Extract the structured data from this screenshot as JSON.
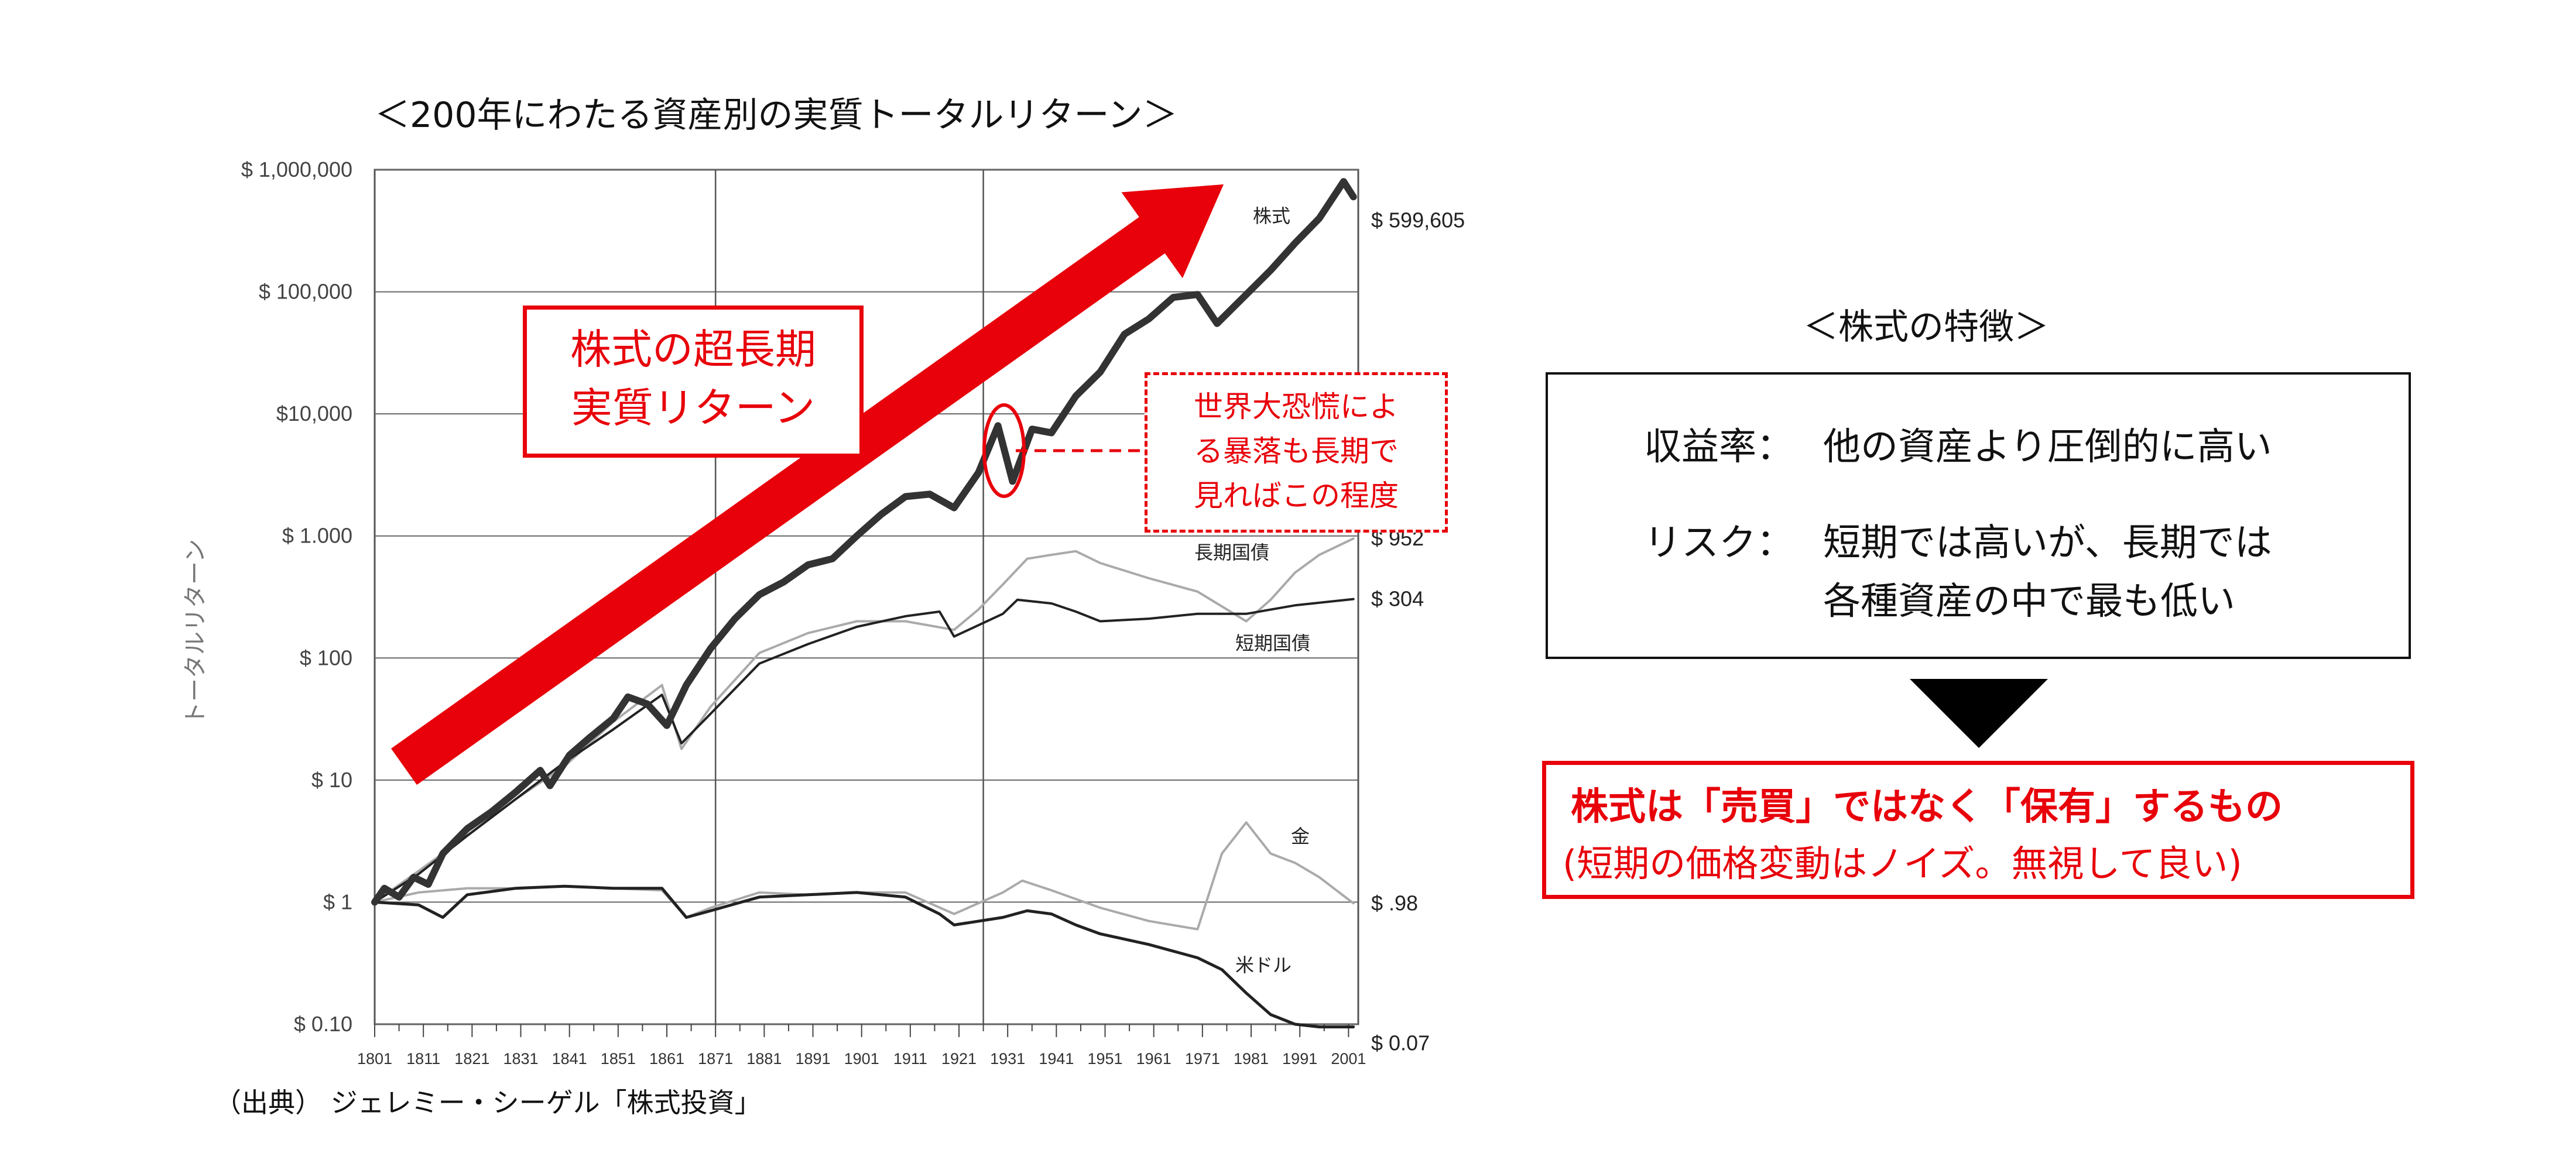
{
  "title": "＜200年にわたる資産別の実質トータルリターン＞",
  "source": "（出典） ジェレミー・シーゲル「株式投資」",
  "callout_long_term": [
    "株式の超長期",
    "実質リターン"
  ],
  "callout_crash": [
    "世界大恐慌によ",
    "る暴落も長期で",
    "見ればこの程度"
  ],
  "feature_panel": {
    "title": "＜株式の特徴＞",
    "rows": [
      {
        "key": "収益率：",
        "lines": [
          "他の資産より圧倒的に高い"
        ]
      },
      {
        "key": "リスク：",
        "lines": [
          "短期では高いが、長期では",
          "各種資産の中で最も低い"
        ]
      }
    ]
  },
  "conclusion": {
    "main": "株式は「売買」ではなく「保有」するもの",
    "sub": "(短期の価格変動はノイズ。無視して良い)"
  },
  "colors": {
    "accent_red": "#e8000a",
    "stock": "#333333",
    "bonds": "#aaaaaa",
    "bills": "#222222",
    "gold": "#aaaaaa",
    "dollar": "#222222"
  },
  "chart_data": {
    "type": "line",
    "ylabel": "トータルリターン",
    "y_scale": "log",
    "ylim": [
      0.1,
      1000000
    ],
    "xlim": [
      1801,
      2003
    ],
    "y_ticks": [
      {
        "value": 1000000,
        "label": "$ 1,000,000"
      },
      {
        "value": 100000,
        "label": "$ 100,000"
      },
      {
        "value": 10000,
        "label": "$10,000"
      },
      {
        "value": 1000,
        "label": "$ 1.000"
      },
      {
        "value": 100,
        "label": "$ 100"
      },
      {
        "value": 10,
        "label": "$ 10"
      },
      {
        "value": 1,
        "label": "$ 1"
      },
      {
        "value": 0.1,
        "label": "$ 0.10"
      }
    ],
    "x_ticks": [
      1801,
      1811,
      1821,
      1831,
      1841,
      1851,
      1861,
      1871,
      1881,
      1891,
      1901,
      1911,
      1921,
      1931,
      1941,
      1951,
      1961,
      1971,
      1981,
      1991,
      2001
    ],
    "vertical_grid": [
      1871,
      1926
    ],
    "series": [
      {
        "name": "株式",
        "end_label": "$ 599,605",
        "end_value": 599605,
        "points": [
          [
            1801,
            1
          ],
          [
            1803,
            1.3
          ],
          [
            1806,
            1.1
          ],
          [
            1809,
            1.6
          ],
          [
            1812,
            1.4
          ],
          [
            1815,
            2.5
          ],
          [
            1820,
            4
          ],
          [
            1825,
            5.5
          ],
          [
            1830,
            8
          ],
          [
            1835,
            12
          ],
          [
            1837,
            9
          ],
          [
            1841,
            16
          ],
          [
            1845,
            22
          ],
          [
            1850,
            32
          ],
          [
            1853,
            48
          ],
          [
            1857,
            42
          ],
          [
            1861,
            28
          ],
          [
            1865,
            60
          ],
          [
            1870,
            120
          ],
          [
            1875,
            210
          ],
          [
            1880,
            330
          ],
          [
            1885,
            420
          ],
          [
            1890,
            580
          ],
          [
            1895,
            650
          ],
          [
            1900,
            1000
          ],
          [
            1905,
            1500
          ],
          [
            1910,
            2100
          ],
          [
            1915,
            2200
          ],
          [
            1920,
            1700
          ],
          [
            1925,
            3300
          ],
          [
            1929,
            8000
          ],
          [
            1932,
            2800
          ],
          [
            1936,
            7500
          ],
          [
            1940,
            7000
          ],
          [
            1945,
            14000
          ],
          [
            1950,
            22000
          ],
          [
            1955,
            45000
          ],
          [
            1960,
            60000
          ],
          [
            1965,
            90000
          ],
          [
            1970,
            95000
          ],
          [
            1974,
            55000
          ],
          [
            1980,
            95000
          ],
          [
            1985,
            150000
          ],
          [
            1990,
            250000
          ],
          [
            1995,
            400000
          ],
          [
            2000,
            800000
          ],
          [
            2002,
            599605
          ]
        ]
      },
      {
        "name": "長期国債",
        "end_label": "$ 952",
        "end_value": 952,
        "points": [
          [
            1801,
            1
          ],
          [
            1810,
            1.8
          ],
          [
            1820,
            3.5
          ],
          [
            1830,
            7
          ],
          [
            1840,
            13
          ],
          [
            1850,
            30
          ],
          [
            1860,
            60
          ],
          [
            1864,
            18
          ],
          [
            1870,
            40
          ],
          [
            1880,
            110
          ],
          [
            1890,
            160
          ],
          [
            1900,
            200
          ],
          [
            1910,
            200
          ],
          [
            1920,
            170
          ],
          [
            1925,
            250
          ],
          [
            1930,
            400
          ],
          [
            1935,
            650
          ],
          [
            1940,
            700
          ],
          [
            1945,
            750
          ],
          [
            1950,
            600
          ],
          [
            1960,
            450
          ],
          [
            1970,
            350
          ],
          [
            1980,
            200
          ],
          [
            1985,
            300
          ],
          [
            1990,
            500
          ],
          [
            1995,
            700
          ],
          [
            2002,
            952
          ]
        ]
      },
      {
        "name": "短期国債",
        "end_label": "$ 304",
        "end_value": 304,
        "points": [
          [
            1801,
            1
          ],
          [
            1810,
            1.7
          ],
          [
            1820,
            3.5
          ],
          [
            1830,
            7
          ],
          [
            1840,
            14
          ],
          [
            1850,
            26
          ],
          [
            1860,
            50
          ],
          [
            1864,
            20
          ],
          [
            1870,
            35
          ],
          [
            1880,
            90
          ],
          [
            1890,
            130
          ],
          [
            1900,
            180
          ],
          [
            1910,
            220
          ],
          [
            1917,
            240
          ],
          [
            1920,
            150
          ],
          [
            1930,
            230
          ],
          [
            1933,
            300
          ],
          [
            1940,
            280
          ],
          [
            1945,
            240
          ],
          [
            1950,
            200
          ],
          [
            1960,
            210
          ],
          [
            1970,
            230
          ],
          [
            1980,
            230
          ],
          [
            1990,
            270
          ],
          [
            2002,
            304
          ]
        ]
      },
      {
        "name": "金",
        "end_label": "$ .98",
        "end_value": 0.98,
        "points": [
          [
            1801,
            1
          ],
          [
            1810,
            1.2
          ],
          [
            1820,
            1.3
          ],
          [
            1830,
            1.3
          ],
          [
            1840,
            1.35
          ],
          [
            1850,
            1.3
          ],
          [
            1860,
            1.25
          ],
          [
            1865,
            0.75
          ],
          [
            1870,
            0.9
          ],
          [
            1880,
            1.2
          ],
          [
            1890,
            1.15
          ],
          [
            1900,
            1.2
          ],
          [
            1910,
            1.2
          ],
          [
            1920,
            0.8
          ],
          [
            1930,
            1.2
          ],
          [
            1934,
            1.5
          ],
          [
            1940,
            1.25
          ],
          [
            1950,
            0.9
          ],
          [
            1960,
            0.7
          ],
          [
            1970,
            0.6
          ],
          [
            1975,
            2.5
          ],
          [
            1980,
            4.5
          ],
          [
            1985,
            2.5
          ],
          [
            1990,
            2.1
          ],
          [
            1995,
            1.6
          ],
          [
            2002,
            0.98
          ]
        ]
      },
      {
        "name": "米ドル",
        "end_label": "$ 0.07",
        "end_value": 0.07,
        "points": [
          [
            1801,
            1
          ],
          [
            1810,
            0.95
          ],
          [
            1815,
            0.75
          ],
          [
            1820,
            1.15
          ],
          [
            1830,
            1.3
          ],
          [
            1840,
            1.35
          ],
          [
            1850,
            1.3
          ],
          [
            1860,
            1.3
          ],
          [
            1865,
            0.75
          ],
          [
            1870,
            0.85
          ],
          [
            1880,
            1.1
          ],
          [
            1890,
            1.15
          ],
          [
            1900,
            1.2
          ],
          [
            1910,
            1.1
          ],
          [
            1917,
            0.8
          ],
          [
            1920,
            0.65
          ],
          [
            1930,
            0.75
          ],
          [
            1935,
            0.85
          ],
          [
            1940,
            0.8
          ],
          [
            1945,
            0.65
          ],
          [
            1950,
            0.55
          ],
          [
            1960,
            0.45
          ],
          [
            1970,
            0.35
          ],
          [
            1975,
            0.28
          ],
          [
            1980,
            0.18
          ],
          [
            1985,
            0.12
          ],
          [
            1990,
            0.1
          ],
          [
            1995,
            0.085
          ],
          [
            2002,
            0.07
          ]
        ]
      }
    ]
  }
}
